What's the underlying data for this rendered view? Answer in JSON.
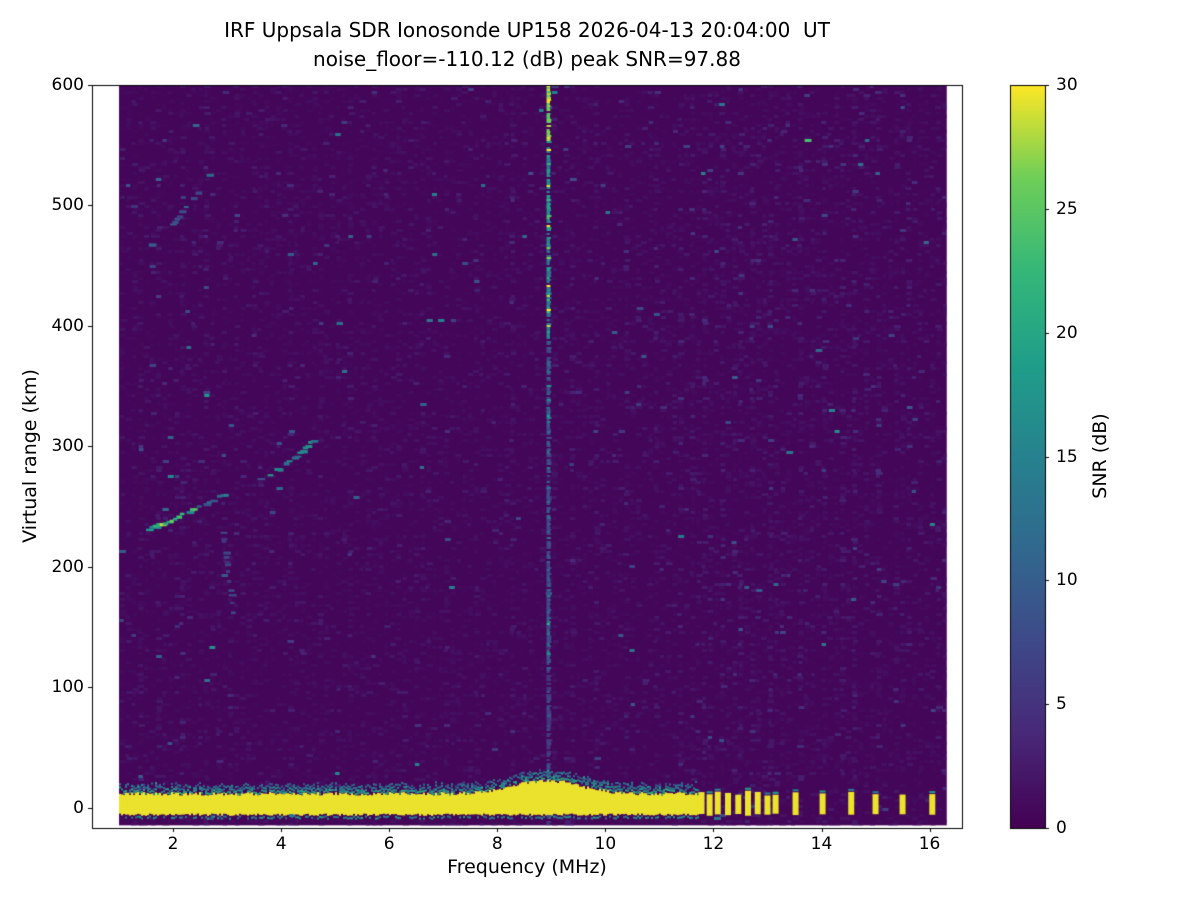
{
  "chart_data": {
    "type": "heatmap",
    "title": "IRF Uppsala SDR Ionosonde UP158 2026-04-13 20:04:00  UT",
    "subtitle": "noise_floor=-110.12 (dB) peak SNR=97.88",
    "xlabel": "Frequency (MHz)",
    "ylabel": "Virtual range (km)",
    "xlim": [
      0.5,
      16.6
    ],
    "ylim": [
      -17,
      600
    ],
    "data_freq_range_mhz": [
      1.0,
      16.32
    ],
    "data_range_km": [
      -15,
      600
    ],
    "xticks": [
      2,
      4,
      6,
      8,
      10,
      12,
      14,
      16
    ],
    "yticks": [
      0,
      100,
      200,
      300,
      400,
      500,
      600
    ],
    "grid": false,
    "colormap": "viridis",
    "background_color": "#440154",
    "peak_color": "#fde725",
    "colorbar": {
      "label": "SNR (dB)",
      "min": 0,
      "max": 30,
      "ticks": [
        0,
        5,
        10,
        15,
        20,
        25,
        30
      ],
      "position": "right"
    },
    "features": {
      "noise_floor_db": -110.12,
      "peak_snr_db": 97.88,
      "ground_pulse_band": {
        "freq_range": [
          1.0,
          11.72
        ],
        "range_km": [
          -7,
          10
        ],
        "snr": 30
      },
      "pulse_bulge": {
        "center_mhz": 8.9,
        "width_mhz": 0.85,
        "extra_height_km": 11
      },
      "discrete_pulses": {
        "freqs_mhz": [
          11.78,
          11.93,
          12.08,
          12.27,
          12.46,
          12.64,
          12.82,
          13.0,
          13.15,
          13.52,
          14.02,
          14.55,
          15.0,
          15.5,
          16.05
        ],
        "range_km": [
          -7,
          12
        ],
        "snr": 30
      },
      "f_layer_trace": {
        "points": [
          [
            1.5,
            232
          ],
          [
            2.0,
            241
          ],
          [
            2.5,
            252
          ],
          [
            3.0,
            262
          ],
          [
            3.5,
            272
          ],
          [
            4.0,
            284
          ],
          [
            4.3,
            295
          ],
          [
            4.6,
            308
          ]
        ],
        "snr": 19
      },
      "second_hop_trace": {
        "points": [
          [
            1.55,
            468
          ],
          [
            1.9,
            483
          ],
          [
            2.2,
            500
          ],
          [
            2.5,
            515
          ],
          [
            2.65,
            528
          ]
        ],
        "snr": 9
      },
      "descending_streak": {
        "points": [
          [
            2.88,
            228
          ],
          [
            3.0,
            190
          ],
          [
            3.08,
            160
          ]
        ],
        "snr": 6
      },
      "rfi_lines": {
        "strong_mhz": 8.93,
        "weak_mhz": [
          1.35,
          1.7,
          2.1,
          2.55,
          3.05,
          3.5,
          4.1,
          4.65,
          5.2,
          5.7,
          6.15,
          6.6,
          7.05,
          7.5,
          8.2,
          9.3,
          9.75,
          10.3,
          10.85,
          11.3,
          11.55,
          13.3,
          13.8,
          14.3,
          14.8,
          15.3,
          15.8
        ]
      }
    }
  }
}
